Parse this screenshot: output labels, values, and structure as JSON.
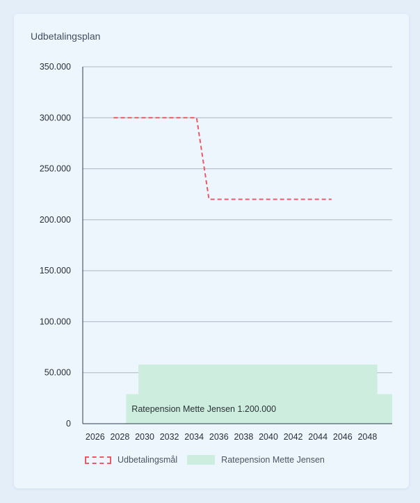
{
  "card": {
    "title": "Udbetalingsplan"
  },
  "legend": {
    "target_label": "Udbetalingsmål",
    "area_label": "Ratepension Mette Jensen"
  },
  "colors": {
    "target_line": "#ea5a66",
    "area_fill": "#cdeedf",
    "gridline": "#a9b6c2",
    "axis": "#2b3a4a"
  },
  "chart_data": {
    "type": "area",
    "title": "Udbetalingsplan",
    "xlim": [
      2025,
      2050
    ],
    "ylim": [
      0,
      350000
    ],
    "x_ticks": [
      "2026",
      "2028",
      "2030",
      "2032",
      "2034",
      "2036",
      "2038",
      "2040",
      "2042",
      "2044",
      "2046",
      "2048"
    ],
    "y_ticks": [
      "0",
      "50.000",
      "100.000",
      "150.000",
      "200.000",
      "250.000",
      "300.000",
      "350.000"
    ],
    "grid": true,
    "legend_position": "bottom",
    "series": [
      {
        "name": "Udbetalingsmål",
        "kind": "dashed-line",
        "points": [
          [
            2027.5,
            300000
          ],
          [
            2034.2,
            300000
          ],
          [
            2035.2,
            220000
          ],
          [
            2045.1,
            220000
          ]
        ]
      },
      {
        "name": "Ratepension Mette Jensen",
        "kind": "step-area",
        "points": [
          [
            2028.5,
            29000
          ],
          [
            2029.5,
            29000
          ],
          [
            2029.5,
            58000
          ],
          [
            2048.8,
            58000
          ],
          [
            2048.8,
            29000
          ],
          [
            2050,
            29000
          ]
        ]
      }
    ],
    "annotations": [
      "Ratepension Mette Jensen 1.200.000"
    ]
  }
}
